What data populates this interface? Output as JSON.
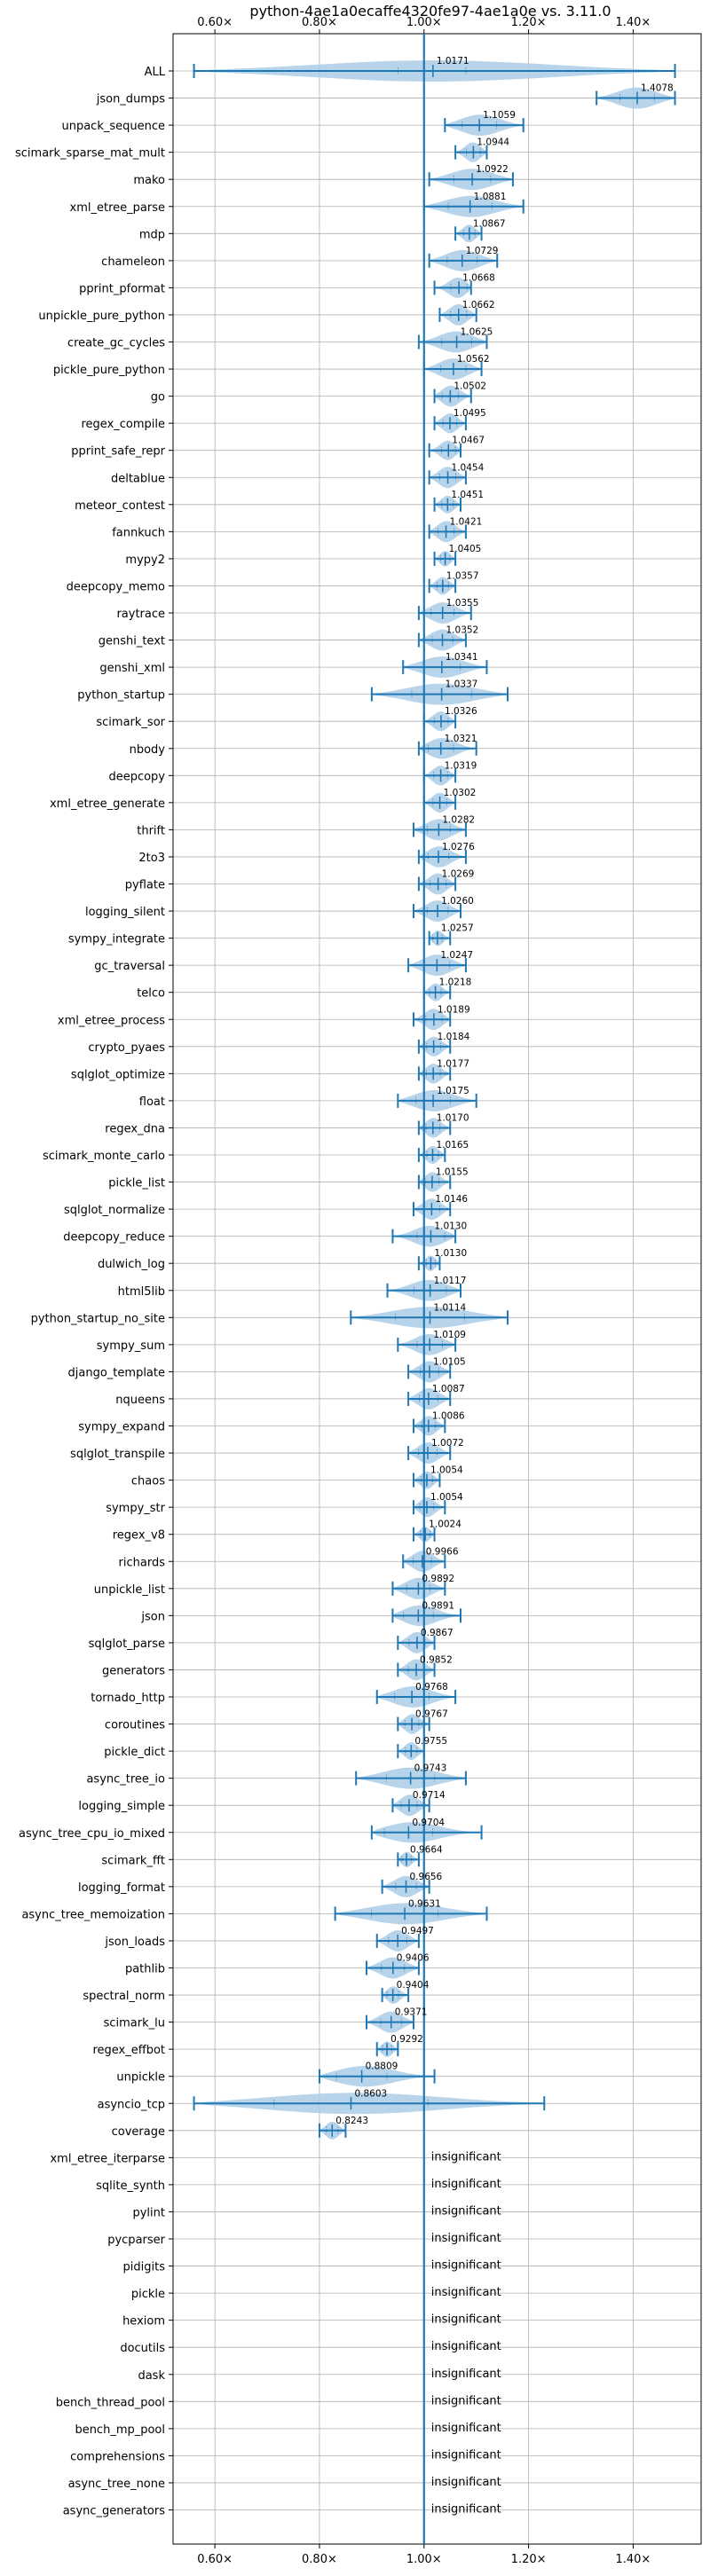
{
  "chart_data": {
    "type": "violin",
    "title": "python-4ae1a0ecaffe4320fe97-4ae1a0e vs. 3.11.0",
    "x_axis": {
      "ticks": [
        0.6,
        0.8,
        1.0,
        1.2,
        1.4
      ],
      "tick_labels": [
        "0.60×",
        "0.80×",
        "1.00×",
        "1.20×",
        "1.40×"
      ],
      "xlim": [
        0.52,
        1.53
      ],
      "reference_line": 1.0,
      "position": "top and bottom"
    },
    "grid": true,
    "colors": {
      "violin": "#aacde8",
      "line": "#1f77b4",
      "text": "#000000",
      "grid": "#b0b0b0"
    },
    "insignificant_label": "insignificant",
    "benchmarks": [
      {
        "name": "ALL",
        "value": 1.0171,
        "label": "1.0171",
        "min": 0.56,
        "max": 1.48,
        "q1": 0.95,
        "q3": 1.08
      },
      {
        "name": "json_dumps",
        "value": 1.4078,
        "label": "1.4078",
        "min": 1.33,
        "max": 1.48
      },
      {
        "name": "unpack_sequence",
        "value": 1.1059,
        "label": "1.1059",
        "min": 1.04,
        "max": 1.19
      },
      {
        "name": "scimark_sparse_mat_mult",
        "value": 1.0944,
        "label": "1.0944",
        "min": 1.06,
        "max": 1.12
      },
      {
        "name": "mako",
        "value": 1.0922,
        "label": "1.0922",
        "min": 1.01,
        "max": 1.17
      },
      {
        "name": "xml_etree_parse",
        "value": 1.0881,
        "label": "1.0881",
        "min": 1.0,
        "max": 1.19
      },
      {
        "name": "mdp",
        "value": 1.0867,
        "label": "1.0867",
        "min": 1.06,
        "max": 1.11
      },
      {
        "name": "chameleon",
        "value": 1.0729,
        "label": "1.0729",
        "min": 1.01,
        "max": 1.14
      },
      {
        "name": "pprint_pformat",
        "value": 1.0668,
        "label": "1.0668",
        "min": 1.02,
        "max": 1.09
      },
      {
        "name": "unpickle_pure_python",
        "value": 1.0662,
        "label": "1.0662",
        "min": 1.03,
        "max": 1.1
      },
      {
        "name": "create_gc_cycles",
        "value": 1.0625,
        "label": "1.0625",
        "min": 0.99,
        "max": 1.12
      },
      {
        "name": "pickle_pure_python",
        "value": 1.0562,
        "label": "1.0562",
        "min": 1.0,
        "max": 1.11
      },
      {
        "name": "go",
        "value": 1.0502,
        "label": "1.0502",
        "min": 1.02,
        "max": 1.09
      },
      {
        "name": "regex_compile",
        "value": 1.0495,
        "label": "1.0495",
        "min": 1.02,
        "max": 1.08
      },
      {
        "name": "pprint_safe_repr",
        "value": 1.0467,
        "label": "1.0467",
        "min": 1.01,
        "max": 1.07
      },
      {
        "name": "deltablue",
        "value": 1.0454,
        "label": "1.0454",
        "min": 1.01,
        "max": 1.08
      },
      {
        "name": "meteor_contest",
        "value": 1.0451,
        "label": "1.0451",
        "min": 1.02,
        "max": 1.07
      },
      {
        "name": "fannkuch",
        "value": 1.0421,
        "label": "1.0421",
        "min": 1.01,
        "max": 1.08
      },
      {
        "name": "mypy2",
        "value": 1.0405,
        "label": "1.0405",
        "min": 1.02,
        "max": 1.06
      },
      {
        "name": "deepcopy_memo",
        "value": 1.0357,
        "label": "1.0357",
        "min": 1.01,
        "max": 1.06
      },
      {
        "name": "raytrace",
        "value": 1.0355,
        "label": "1.0355",
        "min": 0.99,
        "max": 1.09
      },
      {
        "name": "genshi_text",
        "value": 1.0352,
        "label": "1.0352",
        "min": 0.99,
        "max": 1.08
      },
      {
        "name": "genshi_xml",
        "value": 1.0341,
        "label": "1.0341",
        "min": 0.96,
        "max": 1.12
      },
      {
        "name": "python_startup",
        "value": 1.0337,
        "label": "1.0337",
        "min": 0.9,
        "max": 1.16
      },
      {
        "name": "scimark_sor",
        "value": 1.0326,
        "label": "1.0326",
        "min": 1.0,
        "max": 1.06
      },
      {
        "name": "nbody",
        "value": 1.0321,
        "label": "1.0321",
        "min": 0.99,
        "max": 1.1
      },
      {
        "name": "deepcopy",
        "value": 1.0319,
        "label": "1.0319",
        "min": 1.0,
        "max": 1.06
      },
      {
        "name": "xml_etree_generate",
        "value": 1.0302,
        "label": "1.0302",
        "min": 1.0,
        "max": 1.06
      },
      {
        "name": "thrift",
        "value": 1.0282,
        "label": "1.0282",
        "min": 0.98,
        "max": 1.08
      },
      {
        "name": "2to3",
        "value": 1.0276,
        "label": "1.0276",
        "min": 0.99,
        "max": 1.08
      },
      {
        "name": "pyflate",
        "value": 1.0269,
        "label": "1.0269",
        "min": 0.99,
        "max": 1.06
      },
      {
        "name": "logging_silent",
        "value": 1.026,
        "label": "1.0260",
        "min": 0.98,
        "max": 1.07
      },
      {
        "name": "sympy_integrate",
        "value": 1.0257,
        "label": "1.0257",
        "min": 1.01,
        "max": 1.05
      },
      {
        "name": "gc_traversal",
        "value": 1.0247,
        "label": "1.0247",
        "min": 0.97,
        "max": 1.08
      },
      {
        "name": "telco",
        "value": 1.0218,
        "label": "1.0218",
        "min": 1.0,
        "max": 1.05
      },
      {
        "name": "xml_etree_process",
        "value": 1.0189,
        "label": "1.0189",
        "min": 0.98,
        "max": 1.05
      },
      {
        "name": "crypto_pyaes",
        "value": 1.0184,
        "label": "1.0184",
        "min": 0.99,
        "max": 1.05
      },
      {
        "name": "sqlglot_optimize",
        "value": 1.0177,
        "label": "1.0177",
        "min": 0.99,
        "max": 1.05
      },
      {
        "name": "float",
        "value": 1.0175,
        "label": "1.0175",
        "min": 0.95,
        "max": 1.1
      },
      {
        "name": "regex_dna",
        "value": 1.017,
        "label": "1.0170",
        "min": 0.99,
        "max": 1.05
      },
      {
        "name": "scimark_monte_carlo",
        "value": 1.0165,
        "label": "1.0165",
        "min": 0.99,
        "max": 1.04
      },
      {
        "name": "pickle_list",
        "value": 1.0155,
        "label": "1.0155",
        "min": 0.99,
        "max": 1.05
      },
      {
        "name": "sqlglot_normalize",
        "value": 1.0146,
        "label": "1.0146",
        "min": 0.98,
        "max": 1.05
      },
      {
        "name": "deepcopy_reduce",
        "value": 1.013,
        "label": "1.0130",
        "min": 0.94,
        "max": 1.06
      },
      {
        "name": "dulwich_log",
        "value": 1.013,
        "label": "1.0130",
        "min": 0.99,
        "max": 1.03
      },
      {
        "name": "html5lib",
        "value": 1.0117,
        "label": "1.0117",
        "min": 0.93,
        "max": 1.07
      },
      {
        "name": "python_startup_no_site",
        "value": 1.0114,
        "label": "1.0114",
        "min": 0.86,
        "max": 1.16
      },
      {
        "name": "sympy_sum",
        "value": 1.0109,
        "label": "1.0109",
        "min": 0.95,
        "max": 1.06
      },
      {
        "name": "django_template",
        "value": 1.0105,
        "label": "1.0105",
        "min": 0.97,
        "max": 1.05
      },
      {
        "name": "nqueens",
        "value": 1.0087,
        "label": "1.0087",
        "min": 0.97,
        "max": 1.05
      },
      {
        "name": "sympy_expand",
        "value": 1.0086,
        "label": "1.0086",
        "min": 0.98,
        "max": 1.04
      },
      {
        "name": "sqlglot_transpile",
        "value": 1.0072,
        "label": "1.0072",
        "min": 0.97,
        "max": 1.05
      },
      {
        "name": "chaos",
        "value": 1.0054,
        "label": "1.0054",
        "min": 0.98,
        "max": 1.03
      },
      {
        "name": "sympy_str",
        "value": 1.0054,
        "label": "1.0054",
        "min": 0.98,
        "max": 1.04
      },
      {
        "name": "regex_v8",
        "value": 1.0024,
        "label": "1.0024",
        "min": 0.98,
        "max": 1.02
      },
      {
        "name": "richards",
        "value": 0.9966,
        "label": "0.9966",
        "min": 0.96,
        "max": 1.04
      },
      {
        "name": "unpickle_list",
        "value": 0.9892,
        "label": "0.9892",
        "min": 0.94,
        "max": 1.04
      },
      {
        "name": "json",
        "value": 0.9891,
        "label": "0.9891",
        "min": 0.94,
        "max": 1.07
      },
      {
        "name": "sqlglot_parse",
        "value": 0.9867,
        "label": "0.9867",
        "min": 0.95,
        "max": 1.02
      },
      {
        "name": "generators",
        "value": 0.9852,
        "label": "0.9852",
        "min": 0.95,
        "max": 1.02
      },
      {
        "name": "tornado_http",
        "value": 0.9768,
        "label": "0.9768",
        "min": 0.91,
        "max": 1.06
      },
      {
        "name": "coroutines",
        "value": 0.9767,
        "label": "0.9767",
        "min": 0.95,
        "max": 1.01
      },
      {
        "name": "pickle_dict",
        "value": 0.9755,
        "label": "0.9755",
        "min": 0.95,
        "max": 1.0
      },
      {
        "name": "async_tree_io",
        "value": 0.9743,
        "label": "0.9743",
        "min": 0.87,
        "max": 1.08
      },
      {
        "name": "logging_simple",
        "value": 0.9714,
        "label": "0.9714",
        "min": 0.94,
        "max": 1.01
      },
      {
        "name": "async_tree_cpu_io_mixed",
        "value": 0.9704,
        "label": "0.9704",
        "min": 0.9,
        "max": 1.11
      },
      {
        "name": "scimark_fft",
        "value": 0.9664,
        "label": "0.9664",
        "min": 0.95,
        "max": 0.99
      },
      {
        "name": "logging_format",
        "value": 0.9656,
        "label": "0.9656",
        "min": 0.92,
        "max": 1.01
      },
      {
        "name": "async_tree_memoization",
        "value": 0.9631,
        "label": "0.9631",
        "min": 0.83,
        "max": 1.12
      },
      {
        "name": "json_loads",
        "value": 0.9497,
        "label": "0.9497",
        "min": 0.91,
        "max": 0.99
      },
      {
        "name": "pathlib",
        "value": 0.9406,
        "label": "0.9406",
        "min": 0.89,
        "max": 0.99
      },
      {
        "name": "spectral_norm",
        "value": 0.9404,
        "label": "0.9404",
        "min": 0.92,
        "max": 0.97
      },
      {
        "name": "scimark_lu",
        "value": 0.9371,
        "label": "0.9371",
        "min": 0.89,
        "max": 0.98
      },
      {
        "name": "regex_effbot",
        "value": 0.9292,
        "label": "0.9292",
        "min": 0.91,
        "max": 0.95
      },
      {
        "name": "unpickle",
        "value": 0.8809,
        "label": "0.8809",
        "min": 0.8,
        "max": 1.02
      },
      {
        "name": "asyncio_tcp",
        "value": 0.8603,
        "label": "0.8603",
        "min": 0.56,
        "max": 1.23
      },
      {
        "name": "coverage",
        "value": 0.8243,
        "label": "0.8243",
        "min": 0.8,
        "max": 0.85
      },
      {
        "name": "xml_etree_iterparse",
        "value": null,
        "label": null,
        "insignificant": true
      },
      {
        "name": "sqlite_synth",
        "value": null,
        "label": null,
        "insignificant": true
      },
      {
        "name": "pylint",
        "value": null,
        "label": null,
        "insignificant": true
      },
      {
        "name": "pycparser",
        "value": null,
        "label": null,
        "insignificant": true
      },
      {
        "name": "pidigits",
        "value": null,
        "label": null,
        "insignificant": true
      },
      {
        "name": "pickle",
        "value": null,
        "label": null,
        "insignificant": true
      },
      {
        "name": "hexiom",
        "value": null,
        "label": null,
        "insignificant": true
      },
      {
        "name": "docutils",
        "value": null,
        "label": null,
        "insignificant": true
      },
      {
        "name": "dask",
        "value": null,
        "label": null,
        "insignificant": true
      },
      {
        "name": "bench_thread_pool",
        "value": null,
        "label": null,
        "insignificant": true
      },
      {
        "name": "bench_mp_pool",
        "value": null,
        "label": null,
        "insignificant": true
      },
      {
        "name": "comprehensions",
        "value": null,
        "label": null,
        "insignificant": true
      },
      {
        "name": "async_tree_none",
        "value": null,
        "label": null,
        "insignificant": true
      },
      {
        "name": "async_generators",
        "value": null,
        "label": null,
        "insignificant": true
      }
    ]
  }
}
